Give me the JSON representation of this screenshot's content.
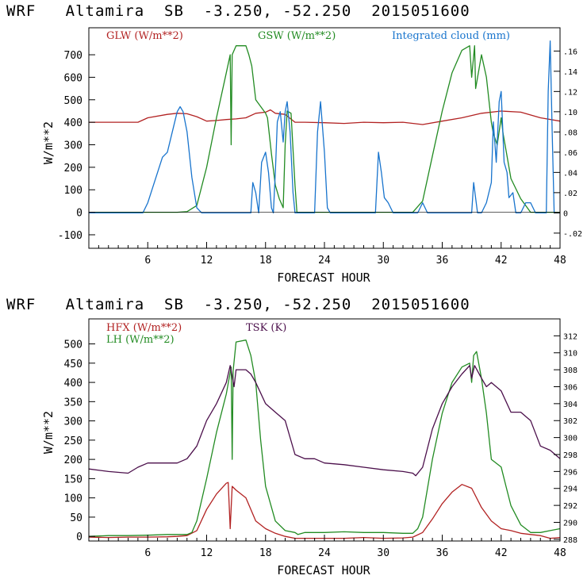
{
  "chart_data": [
    {
      "type": "line",
      "title": "WRF   Altamira  SB  -3.250, -52.250  2015051600",
      "xlabel": "FORECAST HOUR",
      "ylabel": "W/m**2",
      "xlim": [
        0,
        48
      ],
      "ylim": [
        -160,
        820
      ],
      "x_ticks": [
        6,
        12,
        18,
        24,
        30,
        36,
        42,
        48
      ],
      "y_ticks": [
        -100,
        0,
        100,
        200,
        300,
        400,
        500,
        600,
        700
      ],
      "y2_label": "Integrated cloud (mm)",
      "y2_ticks": [
        "-.02",
        "0",
        ".02",
        ".04",
        ".06",
        ".08",
        ".10",
        ".12",
        ".14",
        ".16"
      ],
      "y2_tick_values": [
        -0.02,
        0,
        0.02,
        0.04,
        0.06,
        0.08,
        0.1,
        0.12,
        0.14,
        0.16
      ],
      "y2lim": [
        -0.035,
        0.183
      ],
      "series": [
        {
          "name": "GLW (W/m**2)",
          "color": "#b22222",
          "axis": "left",
          "x": [
            0,
            5,
            6,
            8,
            9,
            10,
            11,
            12,
            13,
            14,
            15,
            16,
            17,
            18,
            18.5,
            19,
            20,
            21,
            22,
            24,
            26,
            28,
            30,
            32,
            34,
            36,
            38,
            40,
            42,
            44,
            46,
            48
          ],
          "y": [
            400,
            400,
            420,
            435,
            440,
            438,
            425,
            405,
            408,
            412,
            415,
            420,
            440,
            445,
            455,
            440,
            435,
            400,
            400,
            398,
            395,
            400,
            398,
            400,
            390,
            405,
            420,
            440,
            450,
            445,
            420,
            405
          ]
        },
        {
          "name": "GSW (W/m**2)",
          "color": "#228b22",
          "axis": "left",
          "x": [
            0,
            9,
            10,
            11,
            12,
            13,
            14,
            14.4,
            14.5,
            14.6,
            15,
            16,
            16.3,
            16.6,
            17,
            18,
            18.2,
            18.6,
            19,
            19.4,
            19.8,
            20,
            20.2,
            20.6,
            21,
            21.2,
            33,
            34,
            35,
            36,
            37,
            38,
            38.8,
            39,
            39.3,
            39.4,
            40,
            40.5,
            41,
            41.2,
            41.6,
            42,
            42.2,
            42.6,
            43,
            44,
            45,
            46,
            48
          ],
          "y": [
            0,
            0,
            3,
            30,
            200,
            420,
            620,
            700,
            300,
            700,
            740,
            740,
            700,
            650,
            500,
            440,
            420,
            260,
            120,
            60,
            20,
            300,
            450,
            440,
            120,
            0,
            0,
            50,
            250,
            450,
            620,
            720,
            740,
            600,
            740,
            550,
            700,
            600,
            400,
            350,
            300,
            420,
            350,
            250,
            150,
            60,
            0,
            0,
            0
          ]
        },
        {
          "name": "Integrated cloud (mm)",
          "color": "#1874cd",
          "axis": "right",
          "x": [
            0,
            5.5,
            6,
            7,
            7.5,
            8,
            8.5,
            9,
            9.3,
            9.6,
            10,
            10.5,
            11,
            11.5,
            12,
            16.5,
            16.7,
            17,
            17.3,
            17.6,
            18,
            18.3,
            18.6,
            18.8,
            19,
            19.2,
            19.5,
            19.8,
            20,
            20.2,
            20.5,
            20.8,
            21,
            21.2,
            23,
            23.3,
            23.6,
            24,
            24.3,
            24.6,
            29.2,
            29.5,
            29.8,
            30.1,
            30.5,
            31,
            33.5,
            34,
            34.5,
            37,
            38,
            39,
            39.2,
            39.6,
            40,
            40.5,
            41,
            41.2,
            41.5,
            41.8,
            42,
            42.3,
            42.6,
            42.8,
            43.2,
            43.5,
            44,
            44.5,
            45,
            45.5,
            46.6,
            46.8,
            47,
            47.2,
            47.4,
            48
          ],
          "y": [
            0,
            0,
            0.01,
            0.04,
            0.055,
            0.06,
            0.08,
            0.1,
            0.105,
            0.1,
            0.08,
            0.035,
            0.005,
            0.0,
            0.0,
            0.0,
            0.03,
            0.02,
            0.0,
            0.05,
            0.06,
            0.04,
            0.005,
            0.0,
            0.04,
            0.09,
            0.1,
            0.07,
            0.1,
            0.11,
            0.08,
            0.02,
            0.0,
            0.0,
            0.0,
            0.08,
            0.11,
            0.06,
            0.005,
            0.0,
            0.0,
            0.06,
            0.04,
            0.015,
            0.01,
            0.0,
            0.0,
            0.01,
            0.0,
            0.0,
            0.0,
            0.0,
            0.03,
            0.0,
            0.0,
            0.01,
            0.03,
            0.09,
            0.05,
            0.11,
            0.12,
            0.05,
            0.04,
            0.015,
            0.02,
            0.0,
            0.0,
            0.01,
            0.01,
            0.0,
            0.0,
            0.12,
            0.17,
            0.08,
            0.0,
            0.0
          ]
        }
      ]
    },
    {
      "type": "line",
      "title": "WRF   Altamira  SB  -3.250, -52.250  2015051600",
      "xlabel": "FORECAST HOUR",
      "ylabel": "W/m**2",
      "xlim": [
        0,
        48
      ],
      "ylim": [
        -12,
        565
      ],
      "x_ticks": [
        6,
        12,
        18,
        24,
        30,
        36,
        42,
        48
      ],
      "y_ticks": [
        0,
        50,
        100,
        150,
        200,
        250,
        300,
        350,
        400,
        450,
        500
      ],
      "y2_label": "TSK (K)",
      "y2_ticks": [
        "288",
        "290",
        "292",
        "294",
        "296",
        "298",
        "300",
        "302",
        "304",
        "306",
        "308",
        "310",
        "312"
      ],
      "y2_tick_values": [
        288,
        290,
        292,
        294,
        296,
        298,
        300,
        302,
        304,
        306,
        308,
        310,
        312
      ],
      "y2lim": [
        287.8,
        314
      ],
      "series": [
        {
          "name": "HFX (W/m**2)",
          "color": "#b22222",
          "axis": "left",
          "x": [
            0,
            2,
            4,
            6,
            8,
            9,
            10,
            11,
            12,
            13,
            14,
            14.2,
            14.4,
            14.6,
            15,
            16,
            17,
            18,
            19,
            20,
            21,
            22,
            24,
            26,
            28,
            30,
            32,
            33,
            34,
            35,
            36,
            37,
            38,
            39,
            40,
            41,
            42,
            43,
            44,
            45,
            46,
            47,
            48
          ],
          "y": [
            -2,
            -3,
            -2,
            -2,
            -1,
            0,
            2,
            15,
            70,
            110,
            138,
            140,
            20,
            130,
            120,
            100,
            40,
            20,
            8,
            0,
            -5,
            -5,
            -5,
            -5,
            -3,
            -5,
            -4,
            -2,
            10,
            45,
            85,
            115,
            135,
            125,
            75,
            40,
            20,
            15,
            8,
            5,
            2,
            -5,
            -3
          ]
        },
        {
          "name": "LH (W/m**2)",
          "color": "#228b22",
          "axis": "left",
          "x": [
            0,
            2,
            4,
            6,
            8,
            9,
            10,
            10.5,
            11,
            12,
            13,
            14,
            14.5,
            14.6,
            14.7,
            15,
            16,
            16.5,
            17,
            17.5,
            18,
            19,
            20,
            21,
            21.3,
            22,
            24,
            26,
            28,
            30,
            32,
            33,
            33.5,
            34,
            35,
            36,
            37,
            38,
            38.8,
            39,
            39.2,
            39.5,
            40,
            40.5,
            41,
            42,
            42.5,
            43,
            44,
            45,
            46,
            47,
            48
          ],
          "y": [
            0,
            2,
            2,
            3,
            5,
            5,
            5,
            10,
            40,
            150,
            270,
            370,
            440,
            200,
            430,
            505,
            510,
            470,
            400,
            250,
            130,
            40,
            15,
            10,
            5,
            10,
            10,
            12,
            10,
            10,
            8,
            8,
            20,
            50,
            200,
            320,
            400,
            440,
            450,
            400,
            470,
            480,
            410,
            320,
            200,
            180,
            130,
            80,
            30,
            10,
            10,
            15,
            20
          ]
        },
        {
          "name": "TSK (K)",
          "color": "#4b0f4b",
          "axis": "right",
          "x": [
            0,
            2,
            4,
            5,
            6,
            7,
            8,
            9,
            10,
            11,
            12,
            13,
            14,
            14.4,
            14.8,
            15,
            16,
            16.5,
            17,
            18,
            19,
            20,
            21,
            22,
            23,
            24,
            26,
            28,
            30,
            32,
            33,
            33.3,
            34,
            35,
            36,
            37,
            38,
            38.8,
            39,
            39.3,
            40,
            40.5,
            41,
            42,
            43,
            44,
            45,
            46,
            47,
            48
          ],
          "y": [
            296.3,
            296.0,
            295.8,
            296.5,
            297.0,
            297.0,
            297.0,
            297.0,
            297.5,
            299.0,
            302.0,
            304.0,
            306.5,
            308.5,
            306.0,
            308.0,
            308.0,
            307.5,
            306.5,
            304.0,
            303.0,
            302.0,
            298.0,
            297.5,
            297.5,
            297.0,
            296.8,
            296.5,
            296.2,
            296.0,
            295.8,
            295.5,
            296.5,
            301.0,
            304.0,
            306.0,
            307.5,
            308.5,
            307.0,
            308.5,
            307.0,
            306.0,
            306.5,
            305.5,
            303.0,
            303.0,
            302.0,
            299.0,
            298.5,
            297.5
          ]
        }
      ]
    }
  ]
}
